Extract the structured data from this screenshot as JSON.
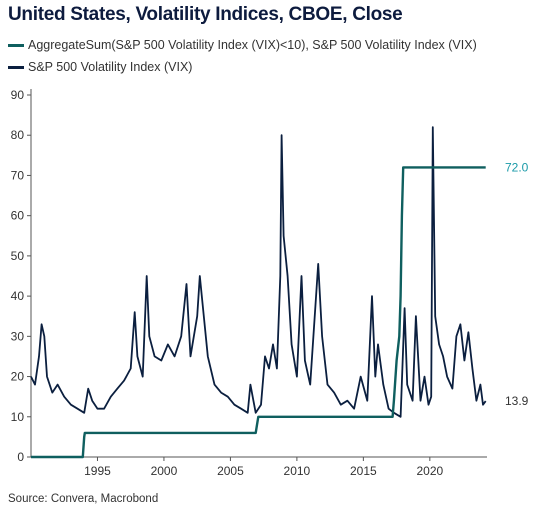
{
  "title": "United States, Volatility Indices, CBOE, Close",
  "source": "Source: Convera, Macrobond",
  "colors": {
    "vix": "#0b1f3f",
    "aggregate": "#0f5f5f",
    "aggregate_label": "#1a9aa8"
  },
  "chart_data": {
    "type": "line",
    "xlim": [
      1990,
      2024.3
    ],
    "ylim": [
      0,
      90
    ],
    "x_ticks": [
      1995,
      2000,
      2005,
      2010,
      2015,
      2020
    ],
    "y_ticks": [
      0,
      10,
      20,
      30,
      40,
      50,
      60,
      70,
      80,
      90
    ],
    "series": [
      {
        "name": "AggregateSum(S&P 500 Volatility Index (VIX)<10), S&P 500 Volatility Index (VIX)",
        "end_label": "72.0",
        "points": [
          [
            1990,
            0
          ],
          [
            1993.9,
            0
          ],
          [
            1994.0,
            5
          ],
          [
            1994.05,
            6
          ],
          [
            2006.9,
            6
          ],
          [
            2007.0,
            8
          ],
          [
            2007.1,
            10
          ],
          [
            2017.2,
            10
          ],
          [
            2017.3,
            14
          ],
          [
            2017.5,
            24
          ],
          [
            2017.7,
            30
          ],
          [
            2017.8,
            40
          ],
          [
            2017.9,
            60
          ],
          [
            2018.0,
            72
          ],
          [
            2024.2,
            72
          ]
        ]
      },
      {
        "name": "S&P 500 Volatility Index (VIX)",
        "end_label": "13.9",
        "points": [
          [
            1990.0,
            20
          ],
          [
            1990.3,
            18
          ],
          [
            1990.6,
            25
          ],
          [
            1990.8,
            33
          ],
          [
            1991.0,
            30
          ],
          [
            1991.2,
            20
          ],
          [
            1991.6,
            16
          ],
          [
            1992.0,
            18
          ],
          [
            1992.5,
            15
          ],
          [
            1993.0,
            13
          ],
          [
            1993.5,
            12
          ],
          [
            1994.0,
            11
          ],
          [
            1994.3,
            17
          ],
          [
            1994.6,
            14
          ],
          [
            1995.0,
            12
          ],
          [
            1995.5,
            12
          ],
          [
            1996.0,
            15
          ],
          [
            1996.5,
            17
          ],
          [
            1997.0,
            19
          ],
          [
            1997.5,
            22
          ],
          [
            1997.8,
            36
          ],
          [
            1998.0,
            25
          ],
          [
            1998.4,
            20
          ],
          [
            1998.7,
            45
          ],
          [
            1998.9,
            30
          ],
          [
            1999.3,
            25
          ],
          [
            1999.8,
            24
          ],
          [
            2000.3,
            28
          ],
          [
            2000.8,
            25
          ],
          [
            2001.3,
            30
          ],
          [
            2001.7,
            43
          ],
          [
            2002.0,
            25
          ],
          [
            2002.5,
            35
          ],
          [
            2002.7,
            45
          ],
          [
            2003.0,
            35
          ],
          [
            2003.3,
            25
          ],
          [
            2003.8,
            18
          ],
          [
            2004.3,
            16
          ],
          [
            2004.8,
            15
          ],
          [
            2005.3,
            13
          ],
          [
            2005.8,
            12
          ],
          [
            2006.3,
            11
          ],
          [
            2006.5,
            18
          ],
          [
            2006.9,
            11
          ],
          [
            2007.3,
            13
          ],
          [
            2007.6,
            25
          ],
          [
            2007.9,
            22
          ],
          [
            2008.2,
            28
          ],
          [
            2008.5,
            22
          ],
          [
            2008.75,
            45
          ],
          [
            2008.85,
            80
          ],
          [
            2009.0,
            55
          ],
          [
            2009.3,
            45
          ],
          [
            2009.6,
            28
          ],
          [
            2010.0,
            20
          ],
          [
            2010.35,
            45
          ],
          [
            2010.6,
            24
          ],
          [
            2011.0,
            18
          ],
          [
            2011.6,
            48
          ],
          [
            2011.9,
            30
          ],
          [
            2012.3,
            18
          ],
          [
            2012.8,
            16
          ],
          [
            2013.3,
            13
          ],
          [
            2013.8,
            14
          ],
          [
            2014.3,
            12
          ],
          [
            2014.8,
            20
          ],
          [
            2015.3,
            14
          ],
          [
            2015.65,
            40
          ],
          [
            2015.9,
            20
          ],
          [
            2016.1,
            28
          ],
          [
            2016.5,
            18
          ],
          [
            2016.9,
            12
          ],
          [
            2017.3,
            11
          ],
          [
            2017.8,
            10
          ],
          [
            2018.1,
            37
          ],
          [
            2018.3,
            18
          ],
          [
            2018.7,
            14
          ],
          [
            2018.95,
            35
          ],
          [
            2019.3,
            14
          ],
          [
            2019.6,
            20
          ],
          [
            2019.9,
            13
          ],
          [
            2020.1,
            15
          ],
          [
            2020.22,
            82
          ],
          [
            2020.4,
            35
          ],
          [
            2020.7,
            28
          ],
          [
            2021.0,
            25
          ],
          [
            2021.3,
            20
          ],
          [
            2021.7,
            17
          ],
          [
            2022.0,
            30
          ],
          [
            2022.3,
            33
          ],
          [
            2022.6,
            24
          ],
          [
            2022.9,
            31
          ],
          [
            2023.2,
            22
          ],
          [
            2023.5,
            14
          ],
          [
            2023.8,
            18
          ],
          [
            2024.0,
            13
          ],
          [
            2024.2,
            13.9
          ]
        ]
      }
    ],
    "grid": false,
    "legend_position": "top-left"
  }
}
